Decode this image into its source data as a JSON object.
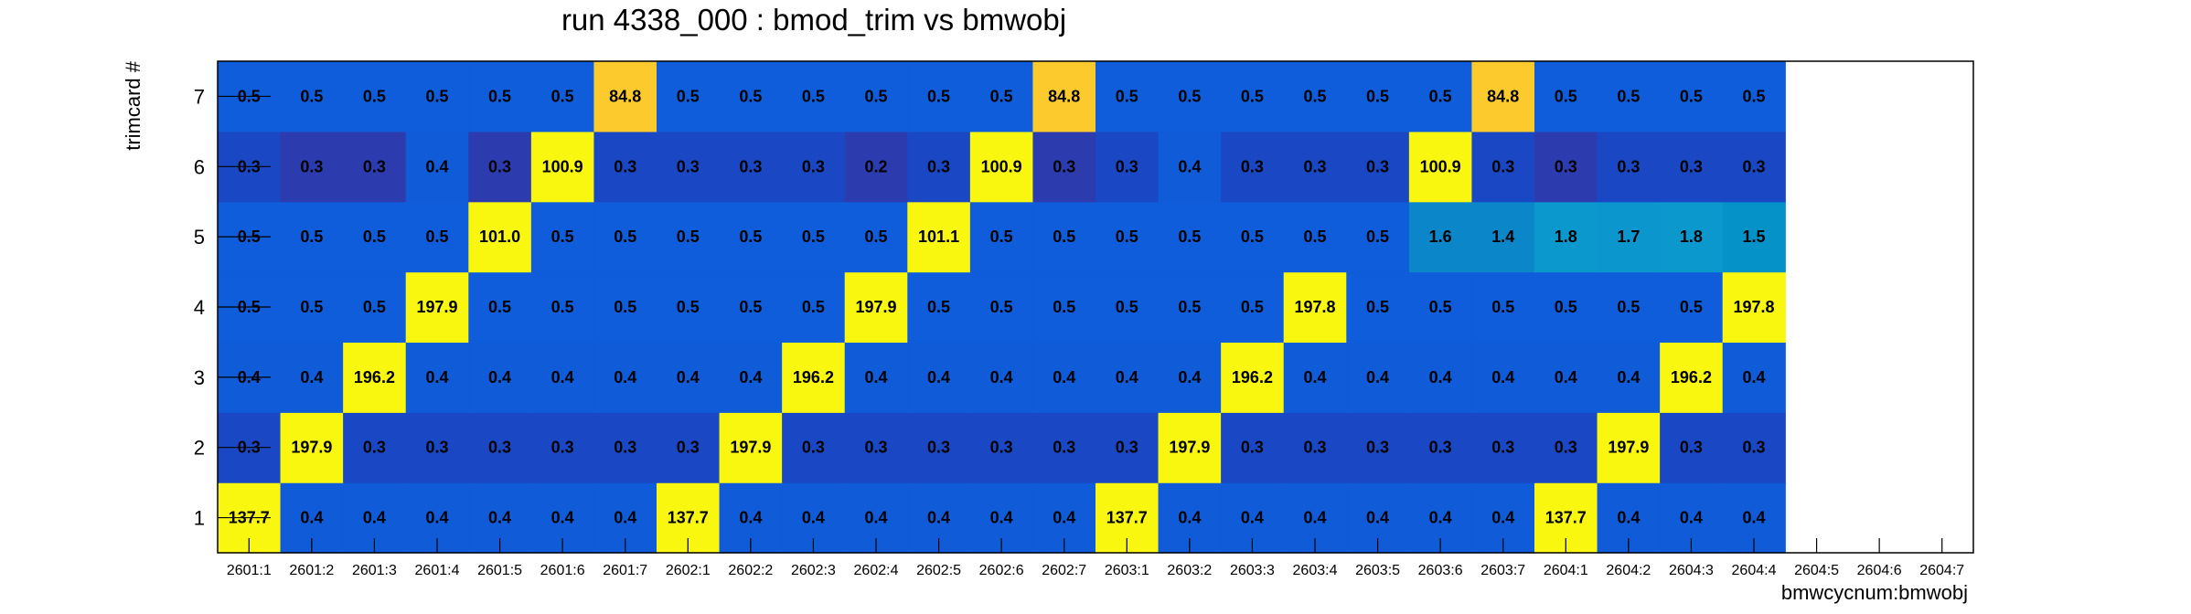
{
  "chart_data": {
    "type": "heatmap",
    "title": "run 4338_000 : bmod_trim vs bmwobj",
    "xlabel": "bmwcycnum:bmwobj",
    "ylabel": "trimcard #",
    "x_categories": [
      "2601:1",
      "2601:2",
      "2601:3",
      "2601:4",
      "2601:5",
      "2601:6",
      "2601:7",
      "2602:1",
      "2602:2",
      "2602:3",
      "2602:4",
      "2602:5",
      "2602:6",
      "2602:7",
      "2603:1",
      "2603:2",
      "2603:3",
      "2603:4",
      "2603:5",
      "2603:6",
      "2603:7",
      "2604:1",
      "2604:2",
      "2604:3",
      "2604:4",
      "2604:5",
      "2604:6",
      "2604:7"
    ],
    "y_categories": [
      "1",
      "2",
      "3",
      "4",
      "5",
      "6",
      "7"
    ],
    "values": [
      [
        "137.7",
        "0.4",
        "0.4",
        "0.4",
        "0.4",
        "0.4",
        "0.4",
        "137.7",
        "0.4",
        "0.4",
        "0.4",
        "0.4",
        "0.4",
        "0.4",
        "137.7",
        "0.4",
        "0.4",
        "0.4",
        "0.4",
        "0.4",
        "0.4",
        "137.7",
        "0.4",
        "0.4",
        "0.4",
        null,
        null,
        null
      ],
      [
        "0.3",
        "197.9",
        "0.3",
        "0.3",
        "0.3",
        "0.3",
        "0.3",
        "0.3",
        "197.9",
        "0.3",
        "0.3",
        "0.3",
        "0.3",
        "0.3",
        "0.3",
        "197.9",
        "0.3",
        "0.3",
        "0.3",
        "0.3",
        "0.3",
        "0.3",
        "197.9",
        "0.3",
        "0.3",
        null,
        null,
        null
      ],
      [
        "0.4",
        "0.4",
        "196.2",
        "0.4",
        "0.4",
        "0.4",
        "0.4",
        "0.4",
        "0.4",
        "196.2",
        "0.4",
        "0.4",
        "0.4",
        "0.4",
        "0.4",
        "0.4",
        "196.2",
        "0.4",
        "0.4",
        "0.4",
        "0.4",
        "0.4",
        "0.4",
        "196.2",
        "0.4",
        null,
        null,
        null
      ],
      [
        "0.5",
        "0.5",
        "0.5",
        "197.9",
        "0.5",
        "0.5",
        "0.5",
        "0.5",
        "0.5",
        "0.5",
        "197.9",
        "0.5",
        "0.5",
        "0.5",
        "0.5",
        "0.5",
        "0.5",
        "197.8",
        "0.5",
        "0.5",
        "0.5",
        "0.5",
        "0.5",
        "0.5",
        "197.8",
        null,
        null,
        null
      ],
      [
        "0.5",
        "0.5",
        "0.5",
        "0.5",
        "101.0",
        "0.5",
        "0.5",
        "0.5",
        "0.5",
        "0.5",
        "0.5",
        "101.1",
        "0.5",
        "0.5",
        "0.5",
        "0.5",
        "0.5",
        "0.5",
        "0.5",
        "1.6",
        "1.4",
        "1.8",
        "1.7",
        "1.8",
        "1.5",
        null,
        null,
        null
      ],
      [
        "0.3",
        "0.3",
        "0.3",
        "0.4",
        "0.3",
        "100.9",
        "0.3",
        "0.3",
        "0.3",
        "0.3",
        "0.2",
        "0.3",
        "100.9",
        "0.3",
        "0.3",
        "0.4",
        "0.3",
        "0.3",
        "0.3",
        "100.9",
        "0.3",
        "0.3",
        "0.3",
        "0.3",
        "0.3",
        null,
        null,
        null
      ],
      [
        "0.5",
        "0.5",
        "0.5",
        "0.5",
        "0.5",
        "0.5",
        "84.8",
        "0.5",
        "0.5",
        "0.5",
        "0.5",
        "0.5",
        "0.5",
        "84.8",
        "0.5",
        "0.5",
        "0.5",
        "0.5",
        "0.5",
        "0.5",
        "84.8",
        "0.5",
        "0.5",
        "0.5",
        "0.5",
        null,
        null,
        null
      ]
    ],
    "colors": {
      "cell_0.2": "#2c3cae",
      "cell_0.3": "#1a48c4",
      "cell_0.3_dark": "#2c3cae",
      "cell_0.4": "#0f5bd8",
      "cell_0.5": "#0f5ddb",
      "cell_1.4": "#0b86c9",
      "cell_1.5": "#0492c9",
      "cell_1.6": "#0b86c9",
      "cell_1.7": "#0b96cd",
      "cell_1.8": "#0a98cd",
      "cell_84.8": "#fcca2c",
      "cell_100.9": "#f9f70f",
      "cell_high": "#f9f70f",
      "frame": "#000000",
      "background": "#ffffff"
    },
    "dark_cells": [
      [
        5,
        1
      ],
      [
        5,
        2
      ],
      [
        5,
        4
      ],
      [
        5,
        10
      ],
      [
        5,
        13
      ],
      [
        5,
        21
      ]
    ],
    "grid": false,
    "legend": "none"
  }
}
